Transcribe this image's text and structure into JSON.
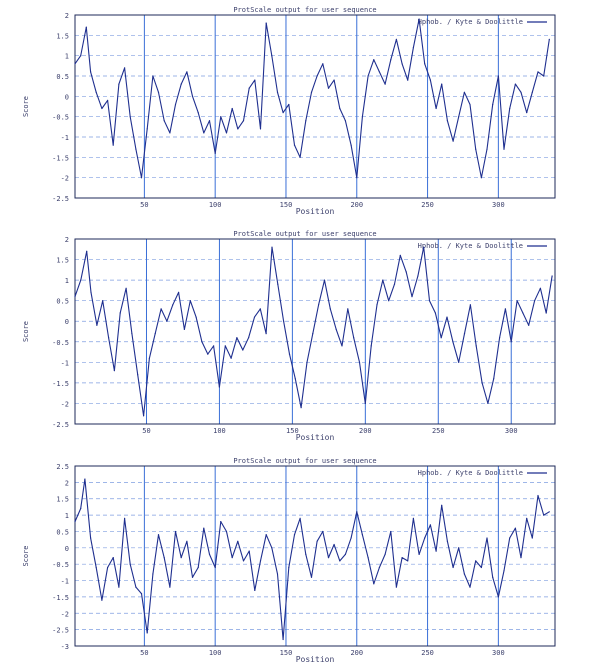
{
  "chart_data": [
    {
      "type": "line",
      "title": "ProtScale output for user sequence",
      "xlabel": "Position",
      "ylabel": "Score",
      "legend": "Hphob. / Kyte & Doolittle",
      "legend_position": "top-right",
      "grid": true,
      "xlim": [
        1,
        340
      ],
      "ylim": [
        -2.5,
        2
      ],
      "xticks": [
        50,
        100,
        150,
        200,
        250,
        300
      ],
      "yticks": [
        2,
        1.5,
        1,
        0.5,
        0,
        -0.5,
        -1,
        -1.5,
        -2,
        -2.5
      ],
      "ytick_labels": [
        "2",
        "1.5",
        "1",
        "0.5",
        "0",
        "-0.5",
        "-1",
        "-1.5",
        "-2",
        "-2.5"
      ],
      "series": [
        {
          "name": "Hphob. / Kyte & Doolittle",
          "color": "#1f2f8f",
          "x": [
            1,
            5,
            9,
            12,
            16,
            20,
            24,
            28,
            32,
            36,
            40,
            44,
            48,
            52,
            56,
            60,
            64,
            68,
            72,
            76,
            80,
            84,
            88,
            92,
            96,
            100,
            104,
            108,
            112,
            116,
            120,
            124,
            128,
            132,
            136,
            140,
            144,
            148,
            152,
            156,
            160,
            164,
            168,
            172,
            176,
            180,
            184,
            188,
            192,
            196,
            200,
            204,
            208,
            212,
            216,
            220,
            224,
            228,
            232,
            236,
            240,
            244,
            248,
            252,
            256,
            260,
            264,
            268,
            272,
            276,
            280,
            284,
            288,
            292,
            296,
            300,
            304,
            308,
            312,
            316,
            320,
            324,
            328,
            332,
            336
          ],
          "y": [
            0.8,
            1.0,
            1.7,
            0.6,
            0.1,
            -0.3,
            -0.1,
            -1.2,
            0.3,
            0.7,
            -0.5,
            -1.3,
            -2.0,
            -0.8,
            0.5,
            0.1,
            -0.6,
            -0.9,
            -0.2,
            0.3,
            0.6,
            0.0,
            -0.4,
            -0.9,
            -0.6,
            -1.4,
            -0.5,
            -0.9,
            -0.3,
            -0.8,
            -0.6,
            0.2,
            0.4,
            -0.8,
            1.8,
            1.0,
            0.1,
            -0.4,
            -0.2,
            -1.2,
            -1.5,
            -0.6,
            0.1,
            0.5,
            0.8,
            0.2,
            0.4,
            -0.3,
            -0.6,
            -1.2,
            -2.0,
            -0.5,
            0.5,
            0.9,
            0.6,
            0.3,
            0.9,
            1.4,
            0.8,
            0.4,
            1.2,
            1.9,
            0.8,
            0.4,
            -0.3,
            0.3,
            -0.6,
            -1.1,
            -0.5,
            0.1,
            -0.2,
            -1.3,
            -2.0,
            -1.3,
            -0.2,
            0.5,
            -1.3,
            -0.3,
            0.3,
            0.1,
            -0.4,
            0.1,
            0.6,
            0.5,
            1.4
          ]
        }
      ]
    },
    {
      "type": "line",
      "title": "ProtScale output for user sequence",
      "xlabel": "Position",
      "ylabel": "Score",
      "legend": "Hphob. / Kyte & Doolittle",
      "legend_position": "top-right",
      "grid": true,
      "xlim": [
        1,
        330
      ],
      "ylim": [
        -2.5,
        2
      ],
      "xticks": [
        50,
        100,
        150,
        200,
        250,
        300
      ],
      "yticks": [
        2,
        1.5,
        1,
        0.5,
        0,
        -0.5,
        -1,
        -1.5,
        -2,
        -2.5
      ],
      "ytick_labels": [
        "2",
        "1.5",
        "1",
        "0.5",
        "0",
        "-0.5",
        "-1",
        "-1.5",
        "-2",
        "-2.5"
      ],
      "series": [
        {
          "name": "Hphob. / Kyte & Doolittle",
          "color": "#1f2f8f",
          "x": [
            1,
            5,
            9,
            12,
            16,
            20,
            24,
            28,
            32,
            36,
            40,
            44,
            48,
            52,
            56,
            60,
            64,
            68,
            72,
            76,
            80,
            84,
            88,
            92,
            96,
            100,
            104,
            108,
            112,
            116,
            120,
            124,
            128,
            132,
            136,
            140,
            144,
            148,
            152,
            156,
            160,
            164,
            168,
            172,
            176,
            180,
            184,
            188,
            192,
            196,
            200,
            204,
            208,
            212,
            216,
            220,
            224,
            228,
            232,
            236,
            240,
            244,
            248,
            252,
            256,
            260,
            264,
            268,
            272,
            276,
            280,
            284,
            288,
            292,
            296,
            300,
            304,
            308,
            312,
            316,
            320,
            324,
            328
          ],
          "y": [
            0.6,
            1.0,
            1.7,
            0.7,
            -0.1,
            0.5,
            -0.4,
            -1.2,
            0.2,
            0.8,
            -0.3,
            -1.3,
            -2.3,
            -0.9,
            -0.3,
            0.3,
            0.0,
            0.4,
            0.7,
            -0.2,
            0.5,
            0.1,
            -0.5,
            -0.8,
            -0.6,
            -1.6,
            -0.6,
            -0.9,
            -0.4,
            -0.7,
            -0.4,
            0.1,
            0.3,
            -0.3,
            1.8,
            0.9,
            0.0,
            -0.8,
            -1.4,
            -2.1,
            -1.0,
            -0.3,
            0.4,
            1.0,
            0.3,
            -0.2,
            -0.6,
            0.3,
            -0.4,
            -1.0,
            -2.0,
            -0.6,
            0.4,
            1.0,
            0.5,
            0.9,
            1.6,
            1.2,
            0.6,
            1.1,
            1.8,
            0.5,
            0.2,
            -0.4,
            0.1,
            -0.5,
            -1.0,
            -0.3,
            0.4,
            -0.6,
            -1.5,
            -2.0,
            -1.4,
            -0.4,
            0.3,
            -0.5,
            0.5,
            0.2,
            -0.1,
            0.5,
            0.8,
            0.2,
            1.1
          ]
        }
      ]
    },
    {
      "type": "line",
      "title": "ProtScale output for user sequence",
      "xlabel": "Position",
      "ylabel": "Score",
      "legend": "Hphob. / Kyte & Doolittle",
      "legend_position": "top-right",
      "grid": true,
      "xlim": [
        1,
        340
      ],
      "ylim": [
        -3,
        2.5
      ],
      "xticks": [
        50,
        100,
        150,
        200,
        250,
        300
      ],
      "yticks": [
        2.5,
        2,
        1.5,
        1,
        0.5,
        0,
        -0.5,
        -1,
        -1.5,
        -2,
        -2.5,
        -3
      ],
      "ytick_labels": [
        "2.5",
        "2",
        "1.5",
        "1",
        "0.5",
        "0",
        "-0.5",
        "-1",
        "-1.5",
        "-2",
        "-2.5",
        "-3"
      ],
      "series": [
        {
          "name": "Hphob. / Kyte & Doolittle",
          "color": "#1f2f8f",
          "x": [
            1,
            5,
            8,
            12,
            16,
            20,
            24,
            28,
            32,
            36,
            40,
            44,
            48,
            52,
            56,
            60,
            64,
            68,
            72,
            76,
            80,
            84,
            88,
            92,
            96,
            100,
            104,
            108,
            112,
            116,
            120,
            124,
            128,
            132,
            136,
            140,
            144,
            148,
            152,
            156,
            160,
            164,
            168,
            172,
            176,
            180,
            184,
            188,
            192,
            196,
            200,
            204,
            208,
            212,
            216,
            220,
            224,
            228,
            232,
            236,
            240,
            244,
            248,
            252,
            256,
            260,
            264,
            268,
            272,
            276,
            280,
            284,
            288,
            292,
            296,
            300,
            304,
            308,
            312,
            316,
            320,
            324,
            328,
            332,
            336
          ],
          "y": [
            0.8,
            1.2,
            2.1,
            0.3,
            -0.6,
            -1.6,
            -0.6,
            -0.3,
            -1.2,
            0.9,
            -0.5,
            -1.2,
            -1.4,
            -2.6,
            -0.8,
            0.4,
            -0.3,
            -1.2,
            0.5,
            -0.3,
            0.2,
            -0.9,
            -0.6,
            0.6,
            -0.2,
            -0.6,
            0.8,
            0.5,
            -0.3,
            0.2,
            -0.4,
            -0.1,
            -1.3,
            -0.4,
            0.4,
            0.0,
            -0.8,
            -2.8,
            -0.6,
            0.4,
            0.9,
            -0.2,
            -0.9,
            0.2,
            0.5,
            -0.3,
            0.1,
            -0.4,
            -0.2,
            0.3,
            1.1,
            0.4,
            -0.3,
            -1.1,
            -0.6,
            -0.2,
            0.5,
            -1.2,
            -0.3,
            -0.4,
            0.9,
            -0.2,
            0.3,
            0.7,
            -0.1,
            1.3,
            0.2,
            -0.6,
            0.0,
            -0.8,
            -1.2,
            -0.4,
            -0.6,
            0.3,
            -0.9,
            -1.5,
            -0.7,
            0.3,
            0.6,
            -0.3,
            0.9,
            0.3,
            1.6,
            1.0,
            1.1
          ]
        }
      ]
    }
  ]
}
